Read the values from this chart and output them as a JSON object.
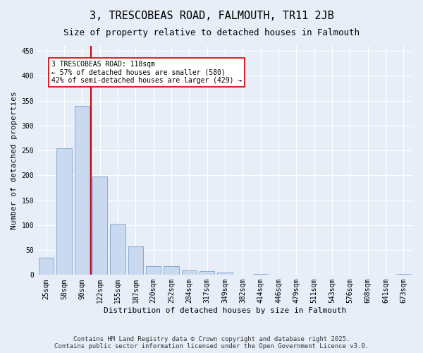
{
  "title": "3, TRESCOBEAS ROAD, FALMOUTH, TR11 2JB",
  "subtitle": "Size of property relative to detached houses in Falmouth",
  "xlabel": "Distribution of detached houses by size in Falmouth",
  "ylabel": "Number of detached properties",
  "categories": [
    "25sqm",
    "58sqm",
    "90sqm",
    "122sqm",
    "155sqm",
    "187sqm",
    "220sqm",
    "252sqm",
    "284sqm",
    "317sqm",
    "349sqm",
    "382sqm",
    "414sqm",
    "446sqm",
    "479sqm",
    "511sqm",
    "543sqm",
    "576sqm",
    "608sqm",
    "641sqm",
    "673sqm"
  ],
  "values": [
    35,
    255,
    340,
    197,
    103,
    57,
    18,
    18,
    9,
    7,
    5,
    0,
    2,
    0,
    0,
    0,
    0,
    0,
    0,
    0,
    2
  ],
  "bar_color": "#c9d9f0",
  "bar_edge_color": "#7ba3d0",
  "vline_x_index": 2,
  "vline_color": "#cc0000",
  "annotation_text": "3 TRESCOBEAS ROAD: 118sqm\n← 57% of detached houses are smaller (580)\n42% of semi-detached houses are larger (429) →",
  "annotation_box_color": "#ffffff",
  "annotation_box_edge_color": "#cc0000",
  "ylim": [
    0,
    460
  ],
  "yticks": [
    0,
    50,
    100,
    150,
    200,
    250,
    300,
    350,
    400,
    450
  ],
  "footer": "Contains HM Land Registry data © Crown copyright and database right 2025.\nContains public sector information licensed under the Open Government Licence v3.0.",
  "bg_color": "#e8eef8",
  "plot_bg_color": "#e8eef8",
  "title_fontsize": 11,
  "subtitle_fontsize": 9,
  "axis_label_fontsize": 8,
  "tick_fontsize": 7,
  "annotation_fontsize": 7,
  "footer_fontsize": 6.5
}
